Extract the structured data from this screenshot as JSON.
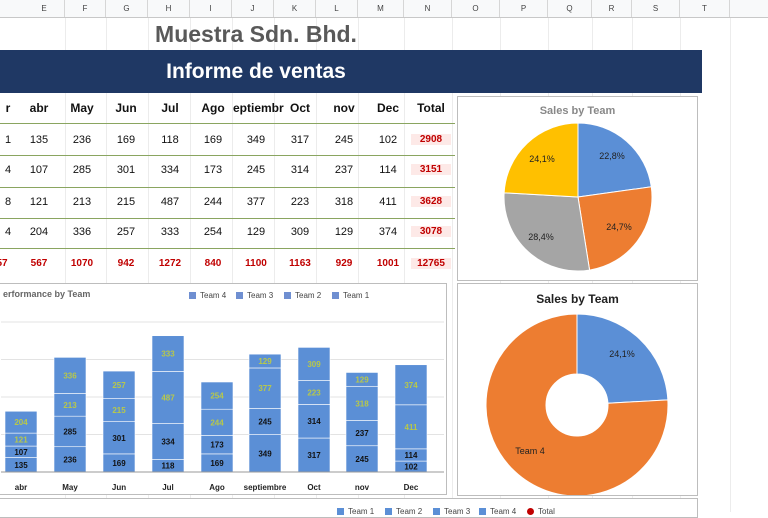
{
  "column_headers": [
    "E",
    "F",
    "G",
    "H",
    "I",
    "J",
    "K",
    "L",
    "M",
    "N",
    "O",
    "P",
    "Q",
    "R",
    "S",
    "T"
  ],
  "company": "Muestra Sdn. Bhd.",
  "report_title": "Informe de ventas",
  "table": {
    "headers": [
      "r",
      "abr",
      "May",
      "Jun",
      "Jul",
      "Ago",
      "eptiembr",
      "Oct",
      "nov",
      "Dec",
      "Total"
    ],
    "rows": [
      [
        "1",
        "135",
        "236",
        "169",
        "118",
        "169",
        "349",
        "317",
        "245",
        "102",
        "2908"
      ],
      [
        "4",
        "107",
        "285",
        "301",
        "334",
        "173",
        "245",
        "314",
        "237",
        "114",
        "3151"
      ],
      [
        "8",
        "121",
        "213",
        "215",
        "487",
        "244",
        "377",
        "223",
        "318",
        "411",
        "3628"
      ],
      [
        "4",
        "204",
        "336",
        "257",
        "333",
        "254",
        "129",
        "309",
        "129",
        "374",
        "3078"
      ]
    ],
    "totals": [
      "57",
      "567",
      "1070",
      "942",
      "1272",
      "840",
      "1100",
      "1163",
      "929",
      "1001",
      "12765"
    ]
  },
  "bar_chart": {
    "title": "erformance by Team",
    "legend": [
      {
        "name": "Team 4",
        "color": "#6f8fd1"
      },
      {
        "name": "Team 3",
        "color": "#6f8fd1"
      },
      {
        "name": "Team 2",
        "color": "#6f8fd1"
      },
      {
        "name": "Team 1",
        "color": "#6f8fd1"
      }
    ],
    "bar_color": "#5b8fd6",
    "label_color_light": "#b8c84a"
  },
  "pie_chart": {
    "title": "Sales by Team",
    "slices": [
      {
        "label": "22,8%",
        "value": 22.8,
        "color": "#5b8fd6"
      },
      {
        "label": "24,7%",
        "value": 24.7,
        "color": "#ed7d31"
      },
      {
        "label": "28,4%",
        "value": 28.4,
        "color": "#a5a5a5"
      },
      {
        "label": "24,1%",
        "value": 24.1,
        "color": "#ffc000"
      }
    ]
  },
  "donut_chart": {
    "title": "Sales by Team",
    "slices": [
      {
        "label": "24,1%",
        "value": 24.1,
        "color": "#5b8fd6"
      },
      {
        "label": "Team 4",
        "value": 75.9,
        "color": "#ed7d31"
      }
    ]
  },
  "bottom_legend": [
    {
      "name": "Team 1",
      "color": "#5b8fd6"
    },
    {
      "name": "Team 2",
      "color": "#5b8fd6"
    },
    {
      "name": "Team 3",
      "color": "#5b8fd6"
    },
    {
      "name": "Team 4",
      "color": "#5b8fd6"
    },
    {
      "name": "Total",
      "color": "#c00000"
    }
  ],
  "chart_data": [
    {
      "type": "bar",
      "title": "erformance by Team",
      "stacked": true,
      "categories": [
        "",
        "abr",
        "May",
        "Jun",
        "Jul",
        "Ago",
        "septiembre",
        "Oct",
        "nov",
        "Dec"
      ],
      "series": [
        {
          "name": "Team 1",
          "values": [
            null,
            135,
            236,
            169,
            118,
            169,
            349,
            317,
            245,
            102
          ]
        },
        {
          "name": "Team 2",
          "values": [
            null,
            107,
            285,
            301,
            334,
            173,
            245,
            314,
            237,
            114
          ]
        },
        {
          "name": "Team 3",
          "values": [
            null,
            121,
            213,
            215,
            487,
            244,
            377,
            223,
            318,
            411
          ]
        },
        {
          "name": "Team 4",
          "values": [
            null,
            204,
            336,
            257,
            333,
            254,
            129,
            309,
            129,
            374
          ]
        }
      ],
      "legend": "top",
      "grid": true
    },
    {
      "type": "pie",
      "title": "Sales by Team",
      "categories": [
        "22,8%",
        "24,7%",
        "28,4%",
        "24,1%"
      ],
      "values": [
        22.8,
        24.7,
        28.4,
        24.1
      ]
    },
    {
      "type": "pie",
      "title": "Sales by Team",
      "categories": [
        "24,1%",
        "Team 4"
      ],
      "values": [
        24.1,
        75.9
      ]
    }
  ]
}
